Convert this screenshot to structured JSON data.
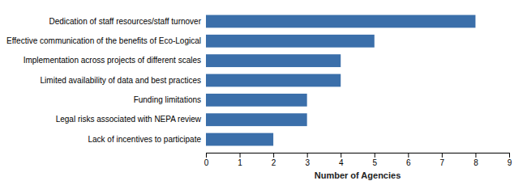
{
  "chart_data": {
    "type": "bar",
    "orientation": "horizontal",
    "categories": [
      "Lack of incentives to participate",
      "Legal risks associated with NEPA review",
      "Funding limitations",
      "Limited availability of data and best practices",
      "Implementation across projects of different scales",
      "Effective communication of the benefits of Eco-Logical",
      "Dedication of staff resources/staff turnover"
    ],
    "values": [
      2,
      3,
      3,
      4,
      4,
      5,
      8
    ],
    "color": "#3b6faa",
    "xlabel": "Number of Agencies",
    "xlim": [
      0,
      9
    ],
    "xticks": [
      0,
      1,
      2,
      3,
      4,
      5,
      6,
      7,
      8,
      9
    ],
    "grid": false
  }
}
